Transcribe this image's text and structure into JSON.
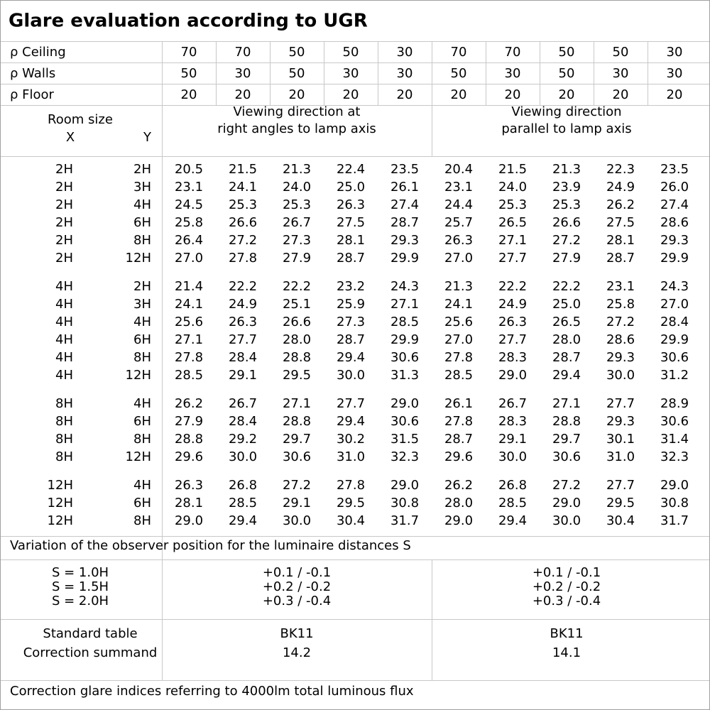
{
  "title": "Glare evaluation according to UGR",
  "reflectances": [
    {
      "label": "ρ Ceiling",
      "values": [
        "70",
        "70",
        "50",
        "50",
        "30",
        "70",
        "70",
        "50",
        "50",
        "30"
      ]
    },
    {
      "label": "ρ Walls",
      "values": [
        "50",
        "30",
        "50",
        "30",
        "30",
        "50",
        "30",
        "50",
        "30",
        "30"
      ]
    },
    {
      "label": "ρ Floor",
      "values": [
        "20",
        "20",
        "20",
        "20",
        "20",
        "20",
        "20",
        "20",
        "20",
        "20"
      ]
    }
  ],
  "header": {
    "room_size": "Room size",
    "x": "X",
    "y": "Y",
    "right_angles": [
      "Viewing direction at",
      "right angles to lamp axis"
    ],
    "parallel": [
      "Viewing direction",
      "parallel to lamp axis"
    ]
  },
  "groups": [
    {
      "rows": [
        {
          "x": "2H",
          "y": "2H",
          "values": [
            "20.5",
            "21.5",
            "21.3",
            "22.4",
            "23.5",
            "20.4",
            "21.5",
            "21.3",
            "22.3",
            "23.5"
          ]
        },
        {
          "x": "2H",
          "y": "3H",
          "values": [
            "23.1",
            "24.1",
            "24.0",
            "25.0",
            "26.1",
            "23.1",
            "24.0",
            "23.9",
            "24.9",
            "26.0"
          ]
        },
        {
          "x": "2H",
          "y": "4H",
          "values": [
            "24.5",
            "25.3",
            "25.3",
            "26.3",
            "27.4",
            "24.4",
            "25.3",
            "25.3",
            "26.2",
            "27.4"
          ]
        },
        {
          "x": "2H",
          "y": "6H",
          "values": [
            "25.8",
            "26.6",
            "26.7",
            "27.5",
            "28.7",
            "25.7",
            "26.5",
            "26.6",
            "27.5",
            "28.6"
          ]
        },
        {
          "x": "2H",
          "y": "8H",
          "values": [
            "26.4",
            "27.2",
            "27.3",
            "28.1",
            "29.3",
            "26.3",
            "27.1",
            "27.2",
            "28.1",
            "29.3"
          ]
        },
        {
          "x": "2H",
          "y": "12H",
          "values": [
            "27.0",
            "27.8",
            "27.9",
            "28.7",
            "29.9",
            "27.0",
            "27.7",
            "27.9",
            "28.7",
            "29.9"
          ]
        }
      ]
    },
    {
      "rows": [
        {
          "x": "4H",
          "y": "2H",
          "values": [
            "21.4",
            "22.2",
            "22.2",
            "23.2",
            "24.3",
            "21.3",
            "22.2",
            "22.2",
            "23.1",
            "24.3"
          ]
        },
        {
          "x": "4H",
          "y": "3H",
          "values": [
            "24.1",
            "24.9",
            "25.1",
            "25.9",
            "27.1",
            "24.1",
            "24.9",
            "25.0",
            "25.8",
            "27.0"
          ]
        },
        {
          "x": "4H",
          "y": "4H",
          "values": [
            "25.6",
            "26.3",
            "26.6",
            "27.3",
            "28.5",
            "25.6",
            "26.3",
            "26.5",
            "27.2",
            "28.4"
          ]
        },
        {
          "x": "4H",
          "y": "6H",
          "values": [
            "27.1",
            "27.7",
            "28.0",
            "28.7",
            "29.9",
            "27.0",
            "27.7",
            "28.0",
            "28.6",
            "29.9"
          ]
        },
        {
          "x": "4H",
          "y": "8H",
          "values": [
            "27.8",
            "28.4",
            "28.8",
            "29.4",
            "30.6",
            "27.8",
            "28.3",
            "28.7",
            "29.3",
            "30.6"
          ]
        },
        {
          "x": "4H",
          "y": "12H",
          "values": [
            "28.5",
            "29.1",
            "29.5",
            "30.0",
            "31.3",
            "28.5",
            "29.0",
            "29.4",
            "30.0",
            "31.2"
          ]
        }
      ]
    },
    {
      "rows": [
        {
          "x": "8H",
          "y": "4H",
          "values": [
            "26.2",
            "26.7",
            "27.1",
            "27.7",
            "29.0",
            "26.1",
            "26.7",
            "27.1",
            "27.7",
            "28.9"
          ]
        },
        {
          "x": "8H",
          "y": "6H",
          "values": [
            "27.9",
            "28.4",
            "28.8",
            "29.4",
            "30.6",
            "27.8",
            "28.3",
            "28.8",
            "29.3",
            "30.6"
          ]
        },
        {
          "x": "8H",
          "y": "8H",
          "values": [
            "28.8",
            "29.2",
            "29.7",
            "30.2",
            "31.5",
            "28.7",
            "29.1",
            "29.7",
            "30.1",
            "31.4"
          ]
        },
        {
          "x": "8H",
          "y": "12H",
          "values": [
            "29.6",
            "30.0",
            "30.6",
            "31.0",
            "32.3",
            "29.6",
            "30.0",
            "30.6",
            "31.0",
            "32.3"
          ]
        }
      ]
    },
    {
      "rows": [
        {
          "x": "12H",
          "y": "4H",
          "values": [
            "26.3",
            "26.8",
            "27.2",
            "27.8",
            "29.0",
            "26.2",
            "26.8",
            "27.2",
            "27.7",
            "29.0"
          ]
        },
        {
          "x": "12H",
          "y": "6H",
          "values": [
            "28.1",
            "28.5",
            "29.1",
            "29.5",
            "30.8",
            "28.0",
            "28.5",
            "29.0",
            "29.5",
            "30.8"
          ]
        },
        {
          "x": "12H",
          "y": "8H",
          "values": [
            "29.0",
            "29.4",
            "30.0",
            "30.4",
            "31.7",
            "29.0",
            "29.4",
            "30.0",
            "30.4",
            "31.7"
          ]
        }
      ]
    }
  ],
  "variation": {
    "label": "Variation of the observer position for the luminaire distances S",
    "rows": [
      {
        "s": "S = 1.0H",
        "right_angles": "+0.1 / -0.1",
        "parallel": "+0.1 / -0.1"
      },
      {
        "s": "S = 1.5H",
        "right_angles": "+0.2 / -0.2",
        "parallel": "+0.2 / -0.2"
      },
      {
        "s": "S = 2.0H",
        "right_angles": "+0.3 / -0.4",
        "parallel": "+0.3 / -0.4"
      }
    ]
  },
  "standard": {
    "labels": [
      "Standard table",
      "Correction summand"
    ],
    "right_angles": [
      "BK11",
      "14.2"
    ],
    "parallel": [
      "BK11",
      "14.1"
    ]
  },
  "footer": "Correction glare indices referring to 4000lm total luminous flux"
}
